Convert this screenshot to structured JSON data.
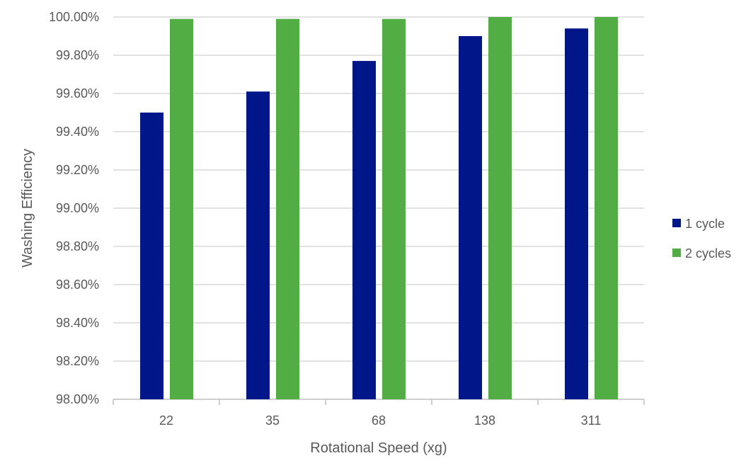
{
  "chart_data": {
    "type": "bar",
    "title": "",
    "xlabel": "Rotational Speed (xg)",
    "ylabel": "Washing Efficiency",
    "categories": [
      "22",
      "35",
      "68",
      "138",
      "311"
    ],
    "series": [
      {
        "name": "1 cycle",
        "color": "#001689",
        "values": [
          99.5,
          99.61,
          99.77,
          99.9,
          99.94
        ]
      },
      {
        "name": "2 cycles",
        "color": "#52AD45",
        "values": [
          99.99,
          99.99,
          99.99,
          100.0,
          100.0
        ]
      }
    ],
    "ylim": [
      98.0,
      100.0
    ],
    "yticks": [
      "98.00%",
      "98.20%",
      "98.40%",
      "98.60%",
      "98.80%",
      "99.00%",
      "99.20%",
      "99.40%",
      "99.60%",
      "99.80%",
      "100.00%"
    ],
    "grid": true,
    "legend_position": "right"
  }
}
